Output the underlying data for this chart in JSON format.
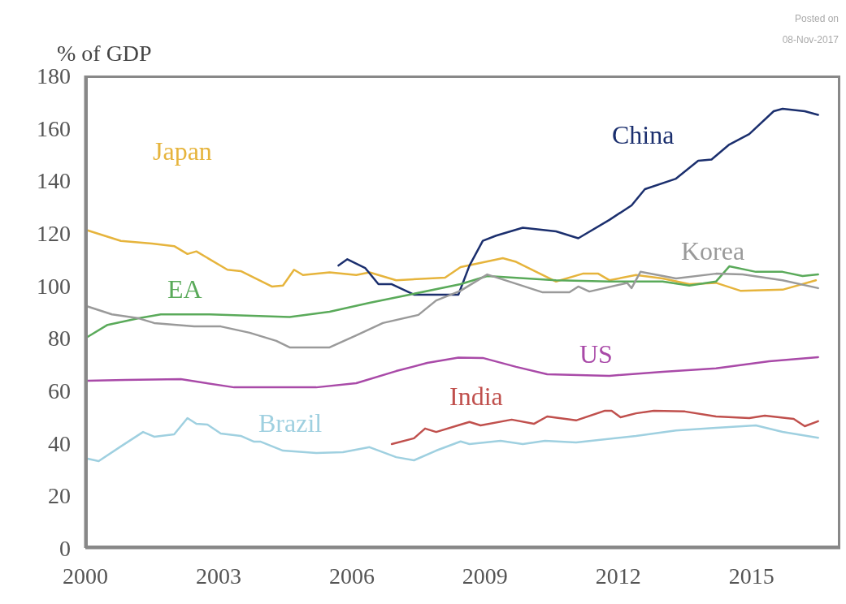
{
  "chart_data": {
    "type": "line",
    "ylabel": "% of GDP",
    "annotations": [
      "Posted on",
      "08-Nov-2017"
    ],
    "xlim": [
      2000,
      2017
    ],
    "xticks": [
      2000,
      2003,
      2006,
      2009,
      2012,
      2015
    ],
    "ylim": [
      0,
      180
    ],
    "yticks": [
      0,
      20,
      40,
      60,
      80,
      100,
      120,
      140,
      160,
      180
    ],
    "legend": false,
    "marker": "none",
    "line_style": "solid",
    "series": [
      {
        "name": "Japan",
        "color": "#e6b43c",
        "x": [
          2000.05,
          2000.8,
          2001.5,
          2002,
          2002.3,
          2002.5,
          2003.2,
          2003.5,
          2004.2,
          2004.45,
          2004.7,
          2004.9,
          2005.5,
          2006.1,
          2006.4,
          2007,
          2008.1,
          2008.45,
          2009.4,
          2009.7,
          2010.6,
          2011.2,
          2011.55,
          2011.8,
          2012.4,
          2013,
          2013.6,
          2014.2,
          2014.75,
          2015.7,
          2016.45
        ],
        "values": [
          121,
          117,
          116,
          115,
          112,
          113,
          106,
          105.5,
          99.6,
          100,
          106,
          104,
          105,
          104,
          105,
          102,
          103,
          107,
          110.4,
          109,
          101.5,
          104.5,
          104.5,
          102,
          104,
          102.7,
          100.5,
          101,
          98,
          98.4,
          102
        ]
      },
      {
        "name": "China",
        "color": "#1b2f6e",
        "x": [
          2005.7,
          2005.9,
          2006.3,
          2006.6,
          2006.9,
          2007.4,
          2008.4,
          2008.65,
          2008.95,
          2009.25,
          2009.85,
          2010.6,
          2011.1,
          2011.8,
          2012.3,
          2012.6,
          2013.3,
          2013.8,
          2014.1,
          2014.5,
          2014.95,
          2015.5,
          2015.7,
          2016.2,
          2016.5
        ],
        "values": [
          107.6,
          110,
          106.7,
          100.5,
          100.5,
          96.5,
          96.5,
          107.6,
          117,
          119,
          122,
          120.6,
          118,
          125,
          130.5,
          136.7,
          140.7,
          147.5,
          148,
          153.7,
          157.7,
          166.4,
          167.3,
          166.4,
          165
        ]
      },
      {
        "name": "EA",
        "color": "#5aaa5a",
        "x": [
          2000.05,
          2000.5,
          2001.2,
          2001.7,
          2002.8,
          2004.6,
          2005.5,
          2006.4,
          2007.3,
          2008.45,
          2009.05,
          2010.6,
          2011.8,
          2013,
          2013.6,
          2014.2,
          2014.5,
          2015.1,
          2015.7,
          2016.15,
          2016.5
        ],
        "values": [
          80.4,
          85,
          87.5,
          89,
          89,
          88,
          90,
          93.4,
          96.5,
          100.5,
          103.6,
          102,
          101.5,
          101.5,
          100,
          101.5,
          107.3,
          105.2,
          105.2,
          103.6,
          104.2
        ]
      },
      {
        "name": "Korea",
        "color": "#9a9a9a",
        "x": [
          2000.05,
          2000.6,
          2001.2,
          2001.55,
          2002.45,
          2003.05,
          2003.7,
          2004.3,
          2004.6,
          2005.5,
          2006.1,
          2006.7,
          2007.5,
          2007.9,
          2008.45,
          2009.05,
          2009.55,
          2010.3,
          2010.9,
          2011.1,
          2011.35,
          2012.2,
          2012.3,
          2012.5,
          2013.3,
          2014.2,
          2014.8,
          2015.7,
          2016.5
        ],
        "values": [
          92,
          89,
          87.5,
          85.7,
          84.4,
          84.4,
          82,
          78.9,
          76.4,
          76.4,
          81,
          85.7,
          88.8,
          94.3,
          98,
          104.2,
          101.5,
          97.4,
          97.4,
          99.6,
          97.7,
          101,
          99,
          105.2,
          102.7,
          104.5,
          104.2,
          102,
          99
        ]
      },
      {
        "name": "US",
        "color": "#a94aa8",
        "x": [
          2000.05,
          2000.9,
          2002.15,
          2003.35,
          2005.2,
          2006.1,
          2007,
          2007.7,
          2008.4,
          2008.95,
          2009.7,
          2010.4,
          2011.8,
          2013,
          2014.2,
          2015.4,
          2016.5
        ],
        "values": [
          63.7,
          64,
          64.3,
          61.2,
          61.2,
          62.8,
          67.4,
          70.5,
          72.5,
          72.4,
          69,
          66.2,
          65.6,
          67.1,
          68.4,
          71.1,
          72.7
        ]
      },
      {
        "name": "India",
        "color": "#c0504d",
        "x": [
          2006.9,
          2007.4,
          2007.65,
          2007.9,
          2008.45,
          2008.65,
          2008.9,
          2009.6,
          2010.1,
          2010.4,
          2011.05,
          2011.7,
          2011.85,
          2012.05,
          2012.4,
          2012.8,
          2013.5,
          2014.2,
          2014.95,
          2015.3,
          2015.95,
          2016.2,
          2016.5
        ],
        "values": [
          39.6,
          41.8,
          45.5,
          44.2,
          47,
          48,
          46.7,
          48.9,
          47.3,
          50.1,
          48.6,
          52.3,
          52.3,
          49.8,
          51.3,
          52.3,
          52,
          50.1,
          49.5,
          50.4,
          49.2,
          46.4,
          48.3
        ]
      },
      {
        "name": "Brazil",
        "color": "#9fd0e0",
        "x": [
          2000.05,
          2000.3,
          2000.8,
          2001.3,
          2001.55,
          2002,
          2002.3,
          2002.5,
          2002.75,
          2003.05,
          2003.5,
          2003.8,
          2003.95,
          2004.45,
          2005.2,
          2005.8,
          2006.4,
          2007,
          2007.4,
          2007.9,
          2008.45,
          2008.65,
          2009.35,
          2009.85,
          2010.35,
          2011.05,
          2012.4,
          2013.3,
          2014.2,
          2015.1,
          2015.7,
          2016.5
        ],
        "values": [
          34,
          33.1,
          38.7,
          44.2,
          42.4,
          43.3,
          49.5,
          47.3,
          47,
          43.6,
          42.7,
          40.5,
          40.5,
          37.1,
          36.2,
          36.5,
          38.4,
          34.6,
          33.4,
          37.1,
          40.6,
          39.6,
          40.8,
          39.6,
          40.8,
          40.2,
          42.7,
          44.8,
          45.8,
          46.7,
          44.2,
          42
        ]
      }
    ]
  }
}
